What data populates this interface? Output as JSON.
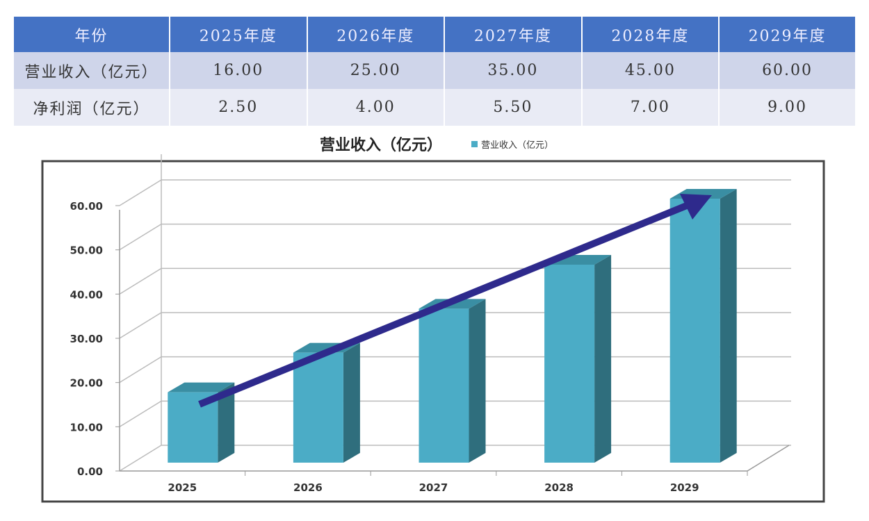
{
  "table": {
    "header": [
      "年份",
      "2025年度",
      "2026年度",
      "2027年度",
      "2028年度",
      "2029年度"
    ],
    "rows": [
      [
        "营业收入（亿元）",
        "16.00",
        "25.00",
        "35.00",
        "45.00",
        "60.00"
      ],
      [
        "净利润（亿元）",
        "2.50",
        "4.00",
        "5.50",
        "7.00",
        "9.00"
      ]
    ]
  },
  "chart_data": {
    "type": "bar",
    "title": "营业收入（亿元）",
    "legend": [
      "营业收入（亿元）"
    ],
    "legend_position": "top-right of title",
    "categories": [
      "2025",
      "2026",
      "2027",
      "2028",
      "2029"
    ],
    "series": [
      {
        "name": "营业收入（亿元）",
        "values": [
          16,
          25,
          35,
          45,
          60
        ]
      }
    ],
    "yticks": [
      "0.00",
      "10.00",
      "20.00",
      "30.00",
      "40.00",
      "50.00",
      "60.00"
    ],
    "ylim": [
      0,
      60
    ],
    "grid": true,
    "style": "3d",
    "trend_arrow": true,
    "colors": {
      "bar_front": "#4bacc6",
      "bar_side": "#2f6e7d",
      "bar_top": "#3a8ea3",
      "arrow": "#2e2a8c",
      "header": "#4472c4"
    }
  }
}
